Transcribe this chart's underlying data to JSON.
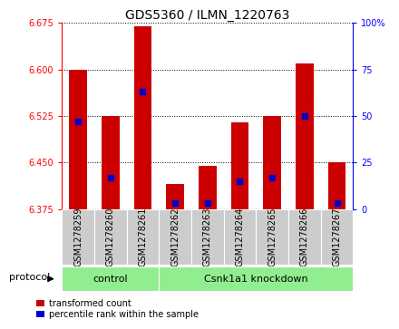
{
  "title": "GDS5360 / ILMN_1220763",
  "samples": [
    "GSM1278259",
    "GSM1278260",
    "GSM1278261",
    "GSM1278262",
    "GSM1278263",
    "GSM1278264",
    "GSM1278265",
    "GSM1278266",
    "GSM1278267"
  ],
  "bar_values": [
    6.6,
    6.525,
    6.67,
    6.415,
    6.445,
    6.515,
    6.525,
    6.61,
    6.45
  ],
  "percentile_values": [
    47,
    17,
    63,
    3,
    3,
    15,
    17,
    50,
    3
  ],
  "ymin": 6.375,
  "ymax": 6.675,
  "yticks": [
    6.375,
    6.45,
    6.525,
    6.6,
    6.675
  ],
  "right_yticks": [
    0,
    25,
    50,
    75,
    100
  ],
  "right_tick_labels": [
    "0",
    "25",
    "50",
    "75",
    "100%"
  ],
  "bar_color": "#cc0000",
  "dot_color": "#0000cc",
  "bar_width": 0.55,
  "n_control": 3,
  "n_knockdown": 6,
  "control_label": "control",
  "knockdown_label": "Csnk1a1 knockdown",
  "protocol_label": "protocol",
  "legend_red": "transformed count",
  "legend_blue": "percentile rank within the sample",
  "green_color": "#90ee90",
  "gray_color": "#cccccc",
  "title_fontsize": 10,
  "tick_fontsize": 7,
  "label_fontsize": 8
}
